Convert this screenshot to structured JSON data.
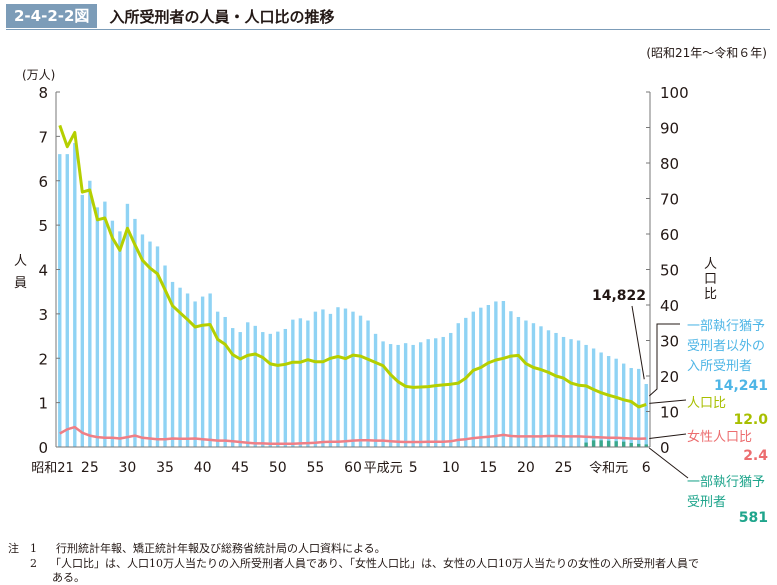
{
  "header": {
    "figure_number": "2-4-2-2図",
    "title": "入所受刑者の人員・人口比の推移",
    "period": "(昭和21年〜令和６年)"
  },
  "chart_data": {
    "type": "bar",
    "title": "入所受刑者の人員・人口比の推移",
    "left_axis": {
      "label": "人員",
      "unit": "(万人)",
      "ylim": [
        0,
        8
      ],
      "ticks": [
        0,
        1,
        2,
        3,
        4,
        5,
        6,
        7,
        8
      ]
    },
    "right_axis": {
      "label": "人口比",
      "ylim": [
        0,
        100
      ],
      "ticks": [
        0,
        10,
        20,
        30,
        40,
        50,
        60,
        70,
        80,
        90,
        100
      ]
    },
    "x_tick_labels": [
      {
        "index": 0,
        "label": "昭和21"
      },
      {
        "index": 4,
        "label": "25"
      },
      {
        "index": 9,
        "label": "30"
      },
      {
        "index": 14,
        "label": "35"
      },
      {
        "index": 19,
        "label": "40"
      },
      {
        "index": 24,
        "label": "45"
      },
      {
        "index": 29,
        "label": "50"
      },
      {
        "index": 34,
        "label": "55"
      },
      {
        "index": 39,
        "label": "60"
      },
      {
        "index": 43,
        "label": "平成元"
      },
      {
        "index": 47,
        "label": "5"
      },
      {
        "index": 52,
        "label": "10"
      },
      {
        "index": 57,
        "label": "15"
      },
      {
        "index": 62,
        "label": "20"
      },
      {
        "index": 67,
        "label": "25"
      },
      {
        "index": 73,
        "label": "令和元"
      },
      {
        "index": 78,
        "label": "6"
      }
    ],
    "series": [
      {
        "name": "一部執行猶予受刑者以外の入所受刑者",
        "kind": "bar",
        "axis": "left",
        "color": "#8fd3f4",
        "values": [
          6.6,
          6.6,
          6.85,
          5.68,
          6.0,
          5.4,
          5.53,
          5.1,
          4.86,
          5.48,
          5.14,
          4.79,
          4.63,
          4.52,
          4.09,
          3.72,
          3.59,
          3.46,
          3.28,
          3.39,
          3.46,
          3.05,
          2.93,
          2.68,
          2.59,
          2.81,
          2.73,
          2.59,
          2.55,
          2.6,
          2.66,
          2.87,
          2.9,
          2.85,
          3.05,
          3.1,
          3.0,
          3.15,
          3.12,
          3.05,
          2.96,
          2.85,
          2.55,
          2.38,
          2.32,
          2.3,
          2.34,
          2.3,
          2.36,
          2.43,
          2.45,
          2.48,
          2.57,
          2.79,
          2.91,
          3.05,
          3.14,
          3.2,
          3.28,
          3.29,
          3.06,
          2.93,
          2.85,
          2.79,
          2.72,
          2.63,
          2.57,
          2.48,
          2.43,
          2.4,
          2.3,
          2.22,
          2.13,
          2.05,
          1.99,
          1.88,
          1.78,
          1.76,
          1.42
        ],
        "last_label": "14,241"
      },
      {
        "name": "一部執行猶予受刑者",
        "kind": "bar",
        "axis": "left",
        "color": "#3aa88c",
        "start_index": 70,
        "values": [
          0.1,
          0.15,
          0.15,
          0.14,
          0.13,
          0.12,
          0.09,
          0.07,
          0.058
        ],
        "last_label": "581"
      },
      {
        "name": "人口比",
        "kind": "line",
        "axis": "right",
        "color": "#b5cf00",
        "values": [
          90.6,
          84.6,
          88.6,
          71.8,
          72.4,
          64.0,
          64.5,
          58.9,
          55.4,
          61.6,
          57.0,
          52.6,
          50.4,
          48.8,
          44.3,
          39.8,
          37.8,
          35.9,
          33.8,
          34.3,
          34.5,
          30.3,
          28.9,
          26.0,
          24.8,
          25.8,
          26.2,
          25.2,
          23.4,
          23.0,
          23.3,
          23.9,
          23.9,
          24.6,
          24.0,
          24.0,
          25.0,
          25.5,
          24.9,
          25.9,
          25.6,
          24.7,
          23.8,
          22.9,
          20.4,
          18.4,
          17.1,
          16.8,
          16.9,
          17.0,
          17.3,
          17.5,
          17.7,
          18.0,
          19.4,
          21.6,
          22.4,
          23.7,
          24.5,
          25.0,
          25.6,
          25.8,
          23.5,
          22.4,
          21.8,
          21.0,
          20.0,
          19.4,
          18.0,
          17.4,
          17.2,
          16.2,
          15.3,
          14.6,
          14.0,
          13.3,
          12.8,
          11.3,
          12.0
        ],
        "last_label": "12.0"
      },
      {
        "name": "女性人口比",
        "kind": "line",
        "axis": "right",
        "color": "#ef7f86",
        "values": [
          3.8,
          5.0,
          5.6,
          4.0,
          3.2,
          2.8,
          2.6,
          2.6,
          2.4,
          2.8,
          3.2,
          2.6,
          2.4,
          2.2,
          2.2,
          2.4,
          2.3,
          2.3,
          2.4,
          2.2,
          2.0,
          1.8,
          1.8,
          1.6,
          1.4,
          1.2,
          1.0,
          1.0,
          0.9,
          0.9,
          0.9,
          0.9,
          1.0,
          1.1,
          1.2,
          1.4,
          1.5,
          1.5,
          1.6,
          1.8,
          1.9,
          1.9,
          1.8,
          1.8,
          1.6,
          1.5,
          1.4,
          1.4,
          1.4,
          1.5,
          1.5,
          1.5,
          1.6,
          2.0,
          2.2,
          2.5,
          2.7,
          2.9,
          3.1,
          3.4,
          3.1,
          3.0,
          3.0,
          3.0,
          3.0,
          3.1,
          3.1,
          3.0,
          3.0,
          3.0,
          2.9,
          2.8,
          2.7,
          2.6,
          2.6,
          2.5,
          2.4,
          2.3,
          2.4
        ],
        "last_label": "2.4"
      }
    ],
    "annotations": [
      {
        "text": "14,822",
        "target": "total bar 令和6"
      },
      {
        "text": "一部執行猶予受刑者以外の入所受刑者",
        "value": "14,241"
      },
      {
        "text": "人口比",
        "value": "12.0"
      },
      {
        "text": "女性人口比",
        "value": "2.4"
      },
      {
        "text": "一部執行猶予受刑者",
        "value": "581"
      }
    ]
  },
  "labels": {
    "left_unit": "(万人)",
    "left_axis_title": [
      "人",
      "員"
    ],
    "right_axis_title": [
      "人",
      "口",
      "比"
    ],
    "total_label": "14,822",
    "legend_nonpartial": [
      "一部執行猶予",
      "受刑者以外の",
      "入所受刑者"
    ],
    "legend_nonpartial_value": "14,241",
    "legend_ratio": "人口比",
    "legend_ratio_value": "12.0",
    "legend_female": "女性人口比",
    "legend_female_value": "2.4",
    "legend_partial": [
      "一部執行猶予",
      "受刑者"
    ],
    "legend_partial_value": "581",
    "colors": {
      "bar": "#8fd3f4",
      "partial_bar": "#3aa88c",
      "ratio_line": "#b5cf00",
      "female_line": "#ef7f86",
      "legend_bar_text": "#4fb6e6",
      "legend_ratio_text": "#a8bf00",
      "legend_female_text": "#ec6d6f",
      "legend_partial_text": "#1fa58c"
    }
  },
  "notes": [
    {
      "prefix": "注",
      "num": "1",
      "text": "行刑統計年報、矯正統計年報及び総務省統計局の人口資料による。"
    },
    {
      "prefix": "",
      "num": "2",
      "text": "「人口比」は、人口10万人当たりの入所受刑者人員であり、「女性人口比」は、女性の人口10万人当たりの女性の入所受刑者人員で"
    },
    {
      "prefix": "",
      "num": "",
      "text": "ある。"
    }
  ]
}
